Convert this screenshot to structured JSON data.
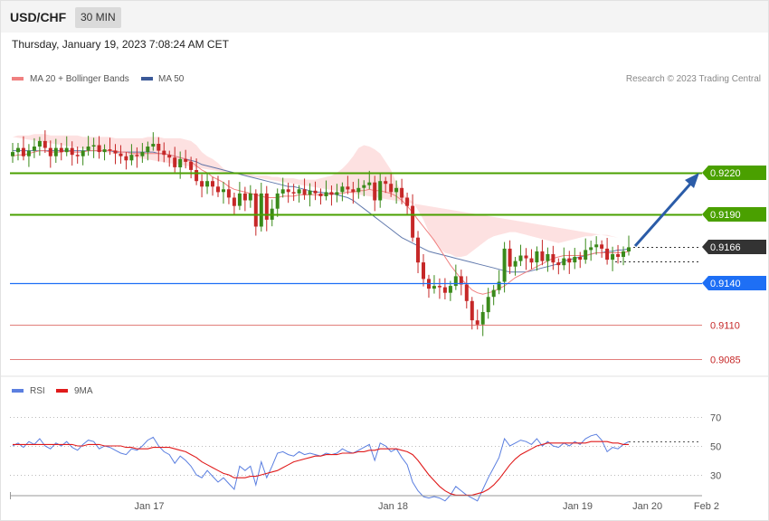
{
  "header": {
    "symbol": "USD/CHF",
    "timeframe": "30 MIN"
  },
  "date_line": "Thursday, January 19, 2023 7:08:24 AM CET",
  "credit": "Research © 2023 Trading Central",
  "colors": {
    "ma20": "#f08080",
    "ma50": "#3b5998",
    "band_fill": "#fddcdc",
    "bull": "#3a8a1a",
    "bear": "#c62828",
    "green_level": "#4aa000",
    "blue_level": "#1e6ff5",
    "red_level": "#d9534f",
    "current": "#333333",
    "rsi": "#5b7fe0",
    "rsi_ma": "#e01b1b",
    "arrow": "#2b5ca8"
  },
  "chart_data": [
    {
      "type": "candlestick",
      "title": "",
      "legend": [
        "MA 20 + Bollinger Bands",
        "MA 50"
      ],
      "legend_position": "top-left",
      "ylim": [
        0.9082,
        0.9248
      ],
      "x_ticks": [
        "Jan 17",
        "Jan 18",
        "Jan 19",
        "Jan 20",
        "Feb 2"
      ],
      "levels": [
        {
          "value": 0.922,
          "label": "0.9220",
          "kind": "resistance"
        },
        {
          "value": 0.919,
          "label": "0.9190",
          "kind": "resistance"
        },
        {
          "value": 0.9166,
          "label": "0.9166",
          "kind": "current"
        },
        {
          "value": 0.914,
          "label": "0.9140",
          "kind": "pivot"
        },
        {
          "value": 0.911,
          "label": "0.9110",
          "kind": "support"
        },
        {
          "value": 0.9085,
          "label": "0.9085",
          "kind": "support"
        }
      ],
      "close": [
        0.9235,
        0.9238,
        0.9232,
        0.9236,
        0.9239,
        0.9243,
        0.9238,
        0.9232,
        0.9238,
        0.9235,
        0.9238,
        0.9233,
        0.9232,
        0.9236,
        0.9239,
        0.924,
        0.9235,
        0.9237,
        0.9236,
        0.9234,
        0.9232,
        0.9229,
        0.9233,
        0.9232,
        0.9235,
        0.9239,
        0.9241,
        0.9236,
        0.9233,
        0.9231,
        0.9224,
        0.923,
        0.9228,
        0.9222,
        0.9214,
        0.921,
        0.9214,
        0.921,
        0.9206,
        0.9208,
        0.9202,
        0.9196,
        0.9205,
        0.92,
        0.9205,
        0.9181,
        0.9205,
        0.9186,
        0.9194,
        0.9205,
        0.9208,
        0.9206,
        0.9205,
        0.9208,
        0.9204,
        0.9207,
        0.9205,
        0.9203,
        0.9206,
        0.9204,
        0.9206,
        0.921,
        0.9208,
        0.9206,
        0.9209,
        0.9211,
        0.9213,
        0.92,
        0.9214,
        0.9212,
        0.9206,
        0.9209,
        0.9202,
        0.9196,
        0.9173,
        0.9155,
        0.9143,
        0.9136,
        0.9138,
        0.9137,
        0.9133,
        0.9138,
        0.9145,
        0.9139,
        0.9127,
        0.9113,
        0.911,
        0.9119,
        0.913,
        0.9135,
        0.9141,
        0.9165,
        0.9152,
        0.9156,
        0.916,
        0.9158,
        0.9155,
        0.9163,
        0.9156,
        0.9161,
        0.9155,
        0.9153,
        0.9158,
        0.9155,
        0.9159,
        0.9157,
        0.9164,
        0.9166,
        0.9168,
        0.9165,
        0.9157,
        0.9161,
        0.9159,
        0.9163,
        0.9166
      ],
      "ma20": [
        0.9232,
        0.9233,
        0.9233,
        0.9234,
        0.9235,
        0.9236,
        0.9236,
        0.9235,
        0.9235,
        0.9235,
        0.9236,
        0.9235,
        0.9235,
        0.9235,
        0.9236,
        0.9236,
        0.9236,
        0.9236,
        0.9236,
        0.9236,
        0.9235,
        0.9235,
        0.9234,
        0.9234,
        0.9234,
        0.9234,
        0.9234,
        0.9234,
        0.9234,
        0.9233,
        0.9232,
        0.9231,
        0.923,
        0.9228,
        0.9225,
        0.9222,
        0.922,
        0.9217,
        0.9215,
        0.9213,
        0.921,
        0.9208,
        0.9207,
        0.9206,
        0.9205,
        0.9204,
        0.9203,
        0.9202,
        0.9202,
        0.9202,
        0.9203,
        0.9203,
        0.9203,
        0.9204,
        0.9204,
        0.9204,
        0.9204,
        0.9204,
        0.9204,
        0.9205,
        0.9205,
        0.9205,
        0.9206,
        0.9206,
        0.9207,
        0.9207,
        0.9208,
        0.9207,
        0.9207,
        0.9206,
        0.9205,
        0.9203,
        0.92,
        0.9196,
        0.9191,
        0.9186,
        0.9181,
        0.9176,
        0.9171,
        0.9165,
        0.9159,
        0.9153,
        0.9148,
        0.9143,
        0.9139,
        0.9135,
        0.9133,
        0.9132,
        0.9133,
        0.9134,
        0.9136,
        0.9138,
        0.9141,
        0.9144,
        0.9146,
        0.9148,
        0.915,
        0.9152,
        0.9154,
        0.9156,
        0.9158,
        0.9159,
        0.916,
        0.916,
        0.916,
        0.916,
        0.916,
        0.9161,
        0.9162,
        0.9162,
        0.9162,
        0.9162,
        0.9162,
        0.9162,
        0.9163
      ],
      "ma50": [
        0.9236,
        0.9236,
        0.9236,
        0.9236,
        0.9236,
        0.9236,
        0.9236,
        0.9236,
        0.9236,
        0.9236,
        0.9236,
        0.9236,
        0.9236,
        0.9236,
        0.9236,
        0.9236,
        0.9236,
        0.9236,
        0.9236,
        0.9235,
        0.9235,
        0.9235,
        0.9235,
        0.9235,
        0.9235,
        0.9235,
        0.9235,
        0.9234,
        0.9234,
        0.9233,
        0.9232,
        0.9231,
        0.923,
        0.9229,
        0.9228,
        0.9226,
        0.9225,
        0.9224,
        0.9223,
        0.9222,
        0.9221,
        0.922,
        0.9219,
        0.9218,
        0.9217,
        0.9216,
        0.9215,
        0.9214,
        0.9213,
        0.9212,
        0.9211,
        0.921,
        0.921,
        0.9209,
        0.9208,
        0.9207,
        0.9206,
        0.9206,
        0.9205,
        0.9205,
        0.9204,
        0.9203,
        0.9202,
        0.92,
        0.9197,
        0.9194,
        0.9191,
        0.9188,
        0.9185,
        0.9182,
        0.9179,
        0.9176,
        0.9173,
        0.9171,
        0.9169,
        0.9167,
        0.9165,
        0.9163,
        0.9162,
        0.9161,
        0.916,
        0.9159,
        0.9158,
        0.9157,
        0.9156,
        0.9155,
        0.9154,
        0.9153,
        0.9152,
        0.9151,
        0.915,
        0.9149,
        0.9148,
        0.9148,
        0.9148,
        0.9148,
        0.9149,
        0.915,
        0.9151,
        0.9152,
        0.9153,
        0.9154,
        0.9156,
        0.9157,
        0.9158,
        0.9159,
        0.916,
        0.9161,
        0.9162,
        0.9162,
        0.9163,
        0.9163,
        0.9164,
        0.9164,
        0.9165
      ],
      "bb_upper": [
        0.9246,
        0.9247,
        0.9247,
        0.9247,
        0.9248,
        0.9248,
        0.9248,
        0.9247,
        0.9247,
        0.9247,
        0.9247,
        0.9247,
        0.9247,
        0.9246,
        0.9246,
        0.9246,
        0.9246,
        0.9246,
        0.9246,
        0.9245,
        0.9245,
        0.9245,
        0.9245,
        0.9245,
        0.9245,
        0.9246,
        0.9246,
        0.9246,
        0.9245,
        0.9245,
        0.9245,
        0.9245,
        0.9244,
        0.9243,
        0.924,
        0.9235,
        0.9232,
        0.923,
        0.9227,
        0.9223,
        0.9221,
        0.922,
        0.9219,
        0.9219,
        0.9219,
        0.9218,
        0.9218,
        0.9218,
        0.9217,
        0.9217,
        0.9216,
        0.9216,
        0.9216,
        0.9215,
        0.9215,
        0.9215,
        0.9215,
        0.9216,
        0.9217,
        0.9218,
        0.922,
        0.9223,
        0.9227,
        0.9232,
        0.9238,
        0.924,
        0.9239,
        0.9237,
        0.9234,
        0.9228,
        0.9222,
        0.9213,
        0.9206,
        0.9202,
        0.9199,
        0.9193,
        0.9186,
        0.9177,
        0.917,
        0.9165,
        0.9162,
        0.9161,
        0.9159,
        0.9159,
        0.916,
        0.9163,
        0.9166,
        0.9169,
        0.9172,
        0.9174,
        0.9175,
        0.9176,
        0.9177,
        0.9177,
        0.9176,
        0.9175,
        0.9174,
        0.9173,
        0.9172,
        0.9171,
        0.917,
        0.9169,
        0.917,
        0.9171,
        0.9172,
        0.9173,
        0.9174,
        0.9174,
        0.9175,
        0.9175,
        0.9175,
        0.9174,
        0.9173
      ],
      "bb_lower": [
        0.9221,
        0.9221,
        0.9222,
        0.9222,
        0.9222,
        0.9223,
        0.9223,
        0.9223,
        0.9224,
        0.9224,
        0.9224,
        0.9224,
        0.9224,
        0.9225,
        0.9225,
        0.9225,
        0.9226,
        0.9226,
        0.9226,
        0.9226,
        0.9226,
        0.9225,
        0.9224,
        0.9222,
        0.922,
        0.9217,
        0.9214,
        0.9211,
        0.9207,
        0.9202,
        0.9197,
        0.9193,
        0.9189,
        0.9186,
        0.9184,
        0.9184,
        0.9185,
        0.9186,
        0.9188,
        0.919,
        0.9192,
        0.9194,
        0.9195,
        0.9196,
        0.9197,
        0.9197,
        0.9198,
        0.9198,
        0.9198,
        0.9198,
        0.9198,
        0.9198,
        0.9198,
        0.9197,
        0.9196,
        0.9194,
        0.919,
        0.9184,
        0.9175,
        0.9165,
        0.9152,
        0.9138,
        0.9125,
        0.9113,
        0.9102,
        0.9094,
        0.9088,
        0.9085,
        0.9084,
        0.9087,
        0.9092,
        0.9098,
        0.9104,
        0.911,
        0.9116,
        0.9122,
        0.9128,
        0.9134,
        0.914,
        0.9145,
        0.9149,
        0.9152,
        0.9154,
        0.9155,
        0.9156,
        0.9157,
        0.9158,
        0.9158,
        0.9158,
        0.9158,
        0.9158,
        0.9158,
        0.9158,
        0.9159,
        0.9159,
        0.916,
        0.916,
        0.9161,
        0.9161,
        0.9162,
        0.9162,
        0.9163,
        0.9163,
        0.9164,
        0.9164,
        0.9165,
        0.9165,
        0.9165,
        0.9165,
        0.9165,
        0.9165,
        0.9166,
        0.9166
      ]
    },
    {
      "type": "line",
      "title": "",
      "legend": [
        "RSI",
        "9MA"
      ],
      "legend_position": "top-left",
      "ylim": [
        10,
        80
      ],
      "y_ticks": [
        30,
        50,
        70
      ],
      "rsi": [
        50,
        52,
        49,
        53,
        51,
        55,
        50,
        48,
        52,
        50,
        53,
        49,
        47,
        51,
        54,
        53,
        48,
        50,
        49,
        47,
        45,
        44,
        48,
        47,
        50,
        54,
        56,
        50,
        46,
        44,
        38,
        43,
        40,
        36,
        30,
        28,
        33,
        29,
        25,
        28,
        24,
        20,
        36,
        33,
        36,
        23,
        39,
        28,
        36,
        45,
        46,
        44,
        43,
        46,
        44,
        45,
        44,
        43,
        45,
        44,
        45,
        48,
        46,
        45,
        47,
        49,
        51,
        40,
        52,
        50,
        46,
        48,
        42,
        37,
        25,
        19,
        15,
        14,
        15,
        14,
        12,
        16,
        22,
        19,
        16,
        14,
        12,
        20,
        28,
        35,
        42,
        55,
        50,
        52,
        54,
        53,
        51,
        55,
        50,
        53,
        50,
        49,
        52,
        50,
        53,
        51,
        55,
        57,
        58,
        54,
        46,
        49,
        48,
        51,
        53
      ],
      "rsi_ma": [
        51,
        51,
        51,
        51,
        51,
        51,
        51,
        51,
        51,
        51,
        51,
        51,
        50,
        50,
        51,
        51,
        51,
        50,
        50,
        50,
        50,
        49,
        49,
        48,
        48,
        48,
        49,
        49,
        49,
        49,
        48,
        47,
        46,
        44,
        42,
        39,
        37,
        35,
        33,
        31,
        30,
        28,
        28,
        28,
        29,
        29,
        30,
        31,
        32,
        33,
        35,
        37,
        39,
        40,
        41,
        42,
        43,
        43,
        44,
        44,
        44,
        45,
        45,
        45,
        46,
        46,
        47,
        47,
        48,
        48,
        48,
        48,
        47,
        46,
        44,
        40,
        35,
        30,
        26,
        22,
        19,
        17,
        16,
        16,
        16,
        16,
        17,
        18,
        20,
        23,
        27,
        32,
        37,
        41,
        44,
        46,
        48,
        50,
        51,
        52,
        52,
        52,
        52,
        52,
        52,
        52,
        52,
        53,
        53,
        53,
        53,
        52,
        52,
        51,
        51
      ]
    }
  ]
}
